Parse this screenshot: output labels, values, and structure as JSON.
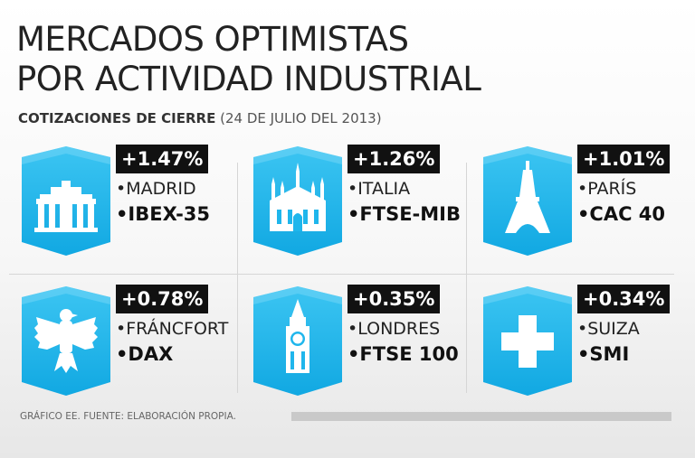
{
  "title": [
    "MERCADOS OPTIMISTAS",
    "POR ACTIVIDAD INDUSTRIAL"
  ],
  "subtitle_bold": "COTIZACIONES DE CIERRE",
  "subtitle_date": "(24 DE JULIO DEL 2013)",
  "footer": "GRÁFICO EE. FUENTE: ELABORACIÓN PROPIA.",
  "colors": {
    "accent": "#1fb6ec",
    "badge": "#111111"
  },
  "chart_data": {
    "type": "table",
    "title": "MERCADOS OPTIMISTAS POR ACTIVIDAD INDUSTRIAL",
    "subtitle": "COTIZACIONES DE CIERRE (24 DE JULIO DEL 2013)",
    "items": [
      {
        "change": "+1.47%",
        "value": 1.47,
        "city": "•MADRID",
        "index": "•IBEX-35",
        "icon": "arch-gate-icon"
      },
      {
        "change": "+1.26%",
        "value": 1.26,
        "city": "•ITALIA",
        "index": "•FTSE-MIB",
        "icon": "cathedral-icon"
      },
      {
        "change": "+1.01%",
        "value": 1.01,
        "city": "•PARÍS",
        "index": "•CAC 40",
        "icon": "eiffel-tower-icon"
      },
      {
        "change": "+0.78%",
        "value": 0.78,
        "city": "•FRÁNCFORT",
        "index": "•DAX",
        "icon": "eagle-icon"
      },
      {
        "change": "+0.35%",
        "value": 0.35,
        "city": "•LONDRES",
        "index": "•FTSE 100",
        "icon": "big-ben-icon"
      },
      {
        "change": "+0.34%",
        "value": 0.34,
        "city": "•SUIZA",
        "index": "•SMI",
        "icon": "swiss-cross-icon"
      }
    ]
  }
}
